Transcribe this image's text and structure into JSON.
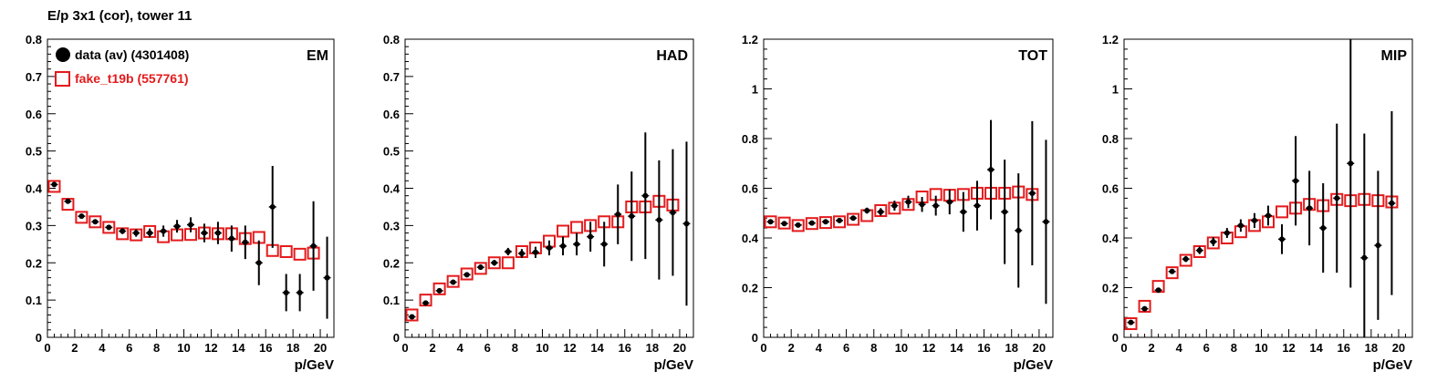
{
  "title": "E/p 3x1 (cor), tower 11",
  "colors": {
    "data": "#000000",
    "sim": "#e41a1c",
    "frame": "#000000"
  },
  "legend": [
    {
      "label": "data (av) (4301408)",
      "marker": "filled-circle",
      "color": "#000000"
    },
    {
      "label": "fake_t19b (557761)",
      "marker": "open-square",
      "color": "#e41a1c"
    }
  ],
  "chart_data": [
    {
      "type": "scatter",
      "panel_label": "EM",
      "xlabel": "p/GeV",
      "xlim": [
        0,
        21
      ],
      "ylim": [
        0,
        0.8
      ],
      "xticks": [
        "0",
        "2",
        "4",
        "6",
        "8",
        "10",
        "12",
        "14",
        "16",
        "18",
        "20"
      ],
      "yticks": [
        "0",
        "0.1",
        "0.2",
        "0.3",
        "0.4",
        "0.5",
        "0.6",
        "0.7",
        "0.8"
      ],
      "series": [
        {
          "name": "data (av) (4301408)",
          "x": [
            0.5,
            1.5,
            2.5,
            3.5,
            4.5,
            5.5,
            6.5,
            7.5,
            8.5,
            9.5,
            10.5,
            11.5,
            12.5,
            13.5,
            14.5,
            15.5,
            16.5,
            17.5,
            18.5,
            19.5,
            20.5
          ],
          "y": [
            0.41,
            0.365,
            0.325,
            0.31,
            0.295,
            0.285,
            0.28,
            0.28,
            0.285,
            0.298,
            0.302,
            0.28,
            0.28,
            0.265,
            0.255,
            0.2,
            0.35,
            0.12,
            0.12,
            0.245,
            0.16
          ],
          "err": [
            0.005,
            0.005,
            0.005,
            0.006,
            0.007,
            0.008,
            0.01,
            0.012,
            0.015,
            0.017,
            0.02,
            0.025,
            0.03,
            0.035,
            0.045,
            0.06,
            0.11,
            0.05,
            0.05,
            0.12,
            0.11
          ]
        },
        {
          "name": "fake_t19b (557761)",
          "x": [
            0.5,
            1.5,
            2.5,
            3.5,
            4.5,
            5.5,
            6.5,
            7.5,
            8.5,
            9.5,
            10.5,
            11.5,
            12.5,
            13.5,
            14.5,
            15.5,
            16.5,
            17.5,
            18.5,
            19.5
          ],
          "y": [
            0.405,
            0.357,
            0.322,
            0.31,
            0.295,
            0.278,
            0.275,
            0.284,
            0.27,
            0.275,
            0.276,
            0.28,
            0.278,
            0.278,
            0.265,
            0.268,
            0.233,
            0.23,
            0.223,
            0.226
          ]
        }
      ]
    },
    {
      "type": "scatter",
      "panel_label": "HAD",
      "xlabel": "p/GeV",
      "xlim": [
        0,
        21
      ],
      "ylim": [
        0,
        0.8
      ],
      "xticks": [
        "0",
        "2",
        "4",
        "6",
        "8",
        "10",
        "12",
        "14",
        "16",
        "18",
        "20"
      ],
      "yticks": [
        "0",
        "0.1",
        "0.2",
        "0.3",
        "0.4",
        "0.5",
        "0.6",
        "0.7",
        "0.8"
      ],
      "series": [
        {
          "name": "data (av) (4301408)",
          "x": [
            0.5,
            1.5,
            2.5,
            3.5,
            4.5,
            5.5,
            6.5,
            7.5,
            8.5,
            9.5,
            10.5,
            11.5,
            12.5,
            13.5,
            14.5,
            15.5,
            16.5,
            17.5,
            18.5,
            19.5,
            20.5
          ],
          "y": [
            0.055,
            0.092,
            0.125,
            0.148,
            0.168,
            0.188,
            0.2,
            0.23,
            0.225,
            0.228,
            0.24,
            0.245,
            0.25,
            0.27,
            0.25,
            0.33,
            0.325,
            0.38,
            0.315,
            0.335,
            0.305
          ],
          "err": [
            0.005,
            0.005,
            0.005,
            0.005,
            0.006,
            0.007,
            0.008,
            0.01,
            0.012,
            0.015,
            0.02,
            0.025,
            0.03,
            0.04,
            0.06,
            0.08,
            0.12,
            0.17,
            0.16,
            0.17,
            0.22
          ]
        },
        {
          "name": "fake_t19b (557761)",
          "x": [
            0.5,
            1.5,
            2.5,
            3.5,
            4.5,
            5.5,
            6.5,
            7.5,
            8.5,
            9.5,
            10.5,
            11.5,
            12.5,
            13.5,
            14.5,
            15.5,
            16.5,
            17.5,
            18.5,
            19.5
          ],
          "y": [
            0.06,
            0.1,
            0.13,
            0.15,
            0.17,
            0.185,
            0.2,
            0.2,
            0.23,
            0.24,
            0.258,
            0.285,
            0.295,
            0.3,
            0.31,
            0.31,
            0.35,
            0.35,
            0.365,
            0.355
          ]
        }
      ]
    },
    {
      "type": "scatter",
      "panel_label": "TOT",
      "xlabel": "p/GeV",
      "xlim": [
        0,
        21
      ],
      "ylim": [
        0,
        1.2
      ],
      "xticks": [
        "0",
        "2",
        "4",
        "6",
        "8",
        "10",
        "12",
        "14",
        "16",
        "18",
        "20"
      ],
      "yticks": [
        "0",
        "0.2",
        "0.4",
        "0.6",
        "0.8",
        "1",
        "1.2"
      ],
      "series": [
        {
          "name": "data (av) (4301408)",
          "x": [
            0.5,
            1.5,
            2.5,
            3.5,
            4.5,
            5.5,
            6.5,
            7.5,
            8.5,
            9.5,
            10.5,
            11.5,
            12.5,
            13.5,
            14.5,
            15.5,
            16.5,
            17.5,
            18.5,
            19.5,
            20.5
          ],
          "y": [
            0.465,
            0.458,
            0.452,
            0.46,
            0.465,
            0.47,
            0.48,
            0.51,
            0.505,
            0.53,
            0.545,
            0.535,
            0.53,
            0.545,
            0.505,
            0.53,
            0.675,
            0.505,
            0.43,
            0.58,
            0.465
          ],
          "err": [
            0.005,
            0.005,
            0.006,
            0.006,
            0.007,
            0.008,
            0.01,
            0.012,
            0.015,
            0.02,
            0.025,
            0.03,
            0.04,
            0.05,
            0.08,
            0.1,
            0.2,
            0.21,
            0.23,
            0.29,
            0.33
          ]
        },
        {
          "name": "fake_t19b (557761)",
          "x": [
            0.5,
            1.5,
            2.5,
            3.5,
            4.5,
            5.5,
            6.5,
            7.5,
            8.5,
            9.5,
            10.5,
            11.5,
            12.5,
            13.5,
            14.5,
            15.5,
            16.5,
            17.5,
            18.5,
            19.5
          ],
          "y": [
            0.465,
            0.46,
            0.45,
            0.458,
            0.462,
            0.465,
            0.475,
            0.49,
            0.51,
            0.52,
            0.535,
            0.565,
            0.575,
            0.572,
            0.575,
            0.58,
            0.58,
            0.58,
            0.585,
            0.575
          ]
        }
      ]
    },
    {
      "type": "scatter",
      "panel_label": "MIP",
      "xlabel": "p/GeV",
      "xlim": [
        0,
        21
      ],
      "ylim": [
        0,
        1.2
      ],
      "xticks": [
        "0",
        "2",
        "4",
        "6",
        "8",
        "10",
        "12",
        "14",
        "16",
        "18",
        "20"
      ],
      "yticks": [
        "0",
        "0.2",
        "0.4",
        "0.6",
        "0.8",
        "1",
        "1.2"
      ],
      "series": [
        {
          "name": "data (av) (4301408)",
          "x": [
            0.5,
            1.5,
            2.5,
            3.5,
            4.5,
            5.5,
            6.5,
            7.5,
            8.5,
            9.5,
            10.5,
            11.5,
            12.5,
            13.5,
            14.5,
            15.5,
            16.5,
            17.5,
            18.5,
            19.5
          ],
          "y": [
            0.06,
            0.115,
            0.19,
            0.265,
            0.315,
            0.35,
            0.385,
            0.42,
            0.45,
            0.47,
            0.49,
            0.395,
            0.63,
            0.52,
            0.44,
            0.56,
            0.7,
            0.32,
            0.37,
            0.54
          ],
          "err": [
            0.005,
            0.006,
            0.008,
            0.01,
            0.012,
            0.015,
            0.018,
            0.02,
            0.025,
            0.03,
            0.04,
            0.06,
            0.18,
            0.15,
            0.18,
            0.3,
            0.5,
            0.5,
            0.3,
            0.37
          ]
        },
        {
          "name": "fake_t19b (557761)",
          "x": [
            0.5,
            1.5,
            2.5,
            3.5,
            4.5,
            5.5,
            6.5,
            7.5,
            8.5,
            9.5,
            10.5,
            11.5,
            12.5,
            13.5,
            14.5,
            15.5,
            16.5,
            17.5,
            18.5,
            19.5
          ],
          "y": [
            0.055,
            0.125,
            0.205,
            0.26,
            0.31,
            0.345,
            0.38,
            0.4,
            0.425,
            0.45,
            0.465,
            0.505,
            0.52,
            0.535,
            0.53,
            0.555,
            0.55,
            0.555,
            0.55,
            0.545
          ]
        }
      ]
    }
  ]
}
